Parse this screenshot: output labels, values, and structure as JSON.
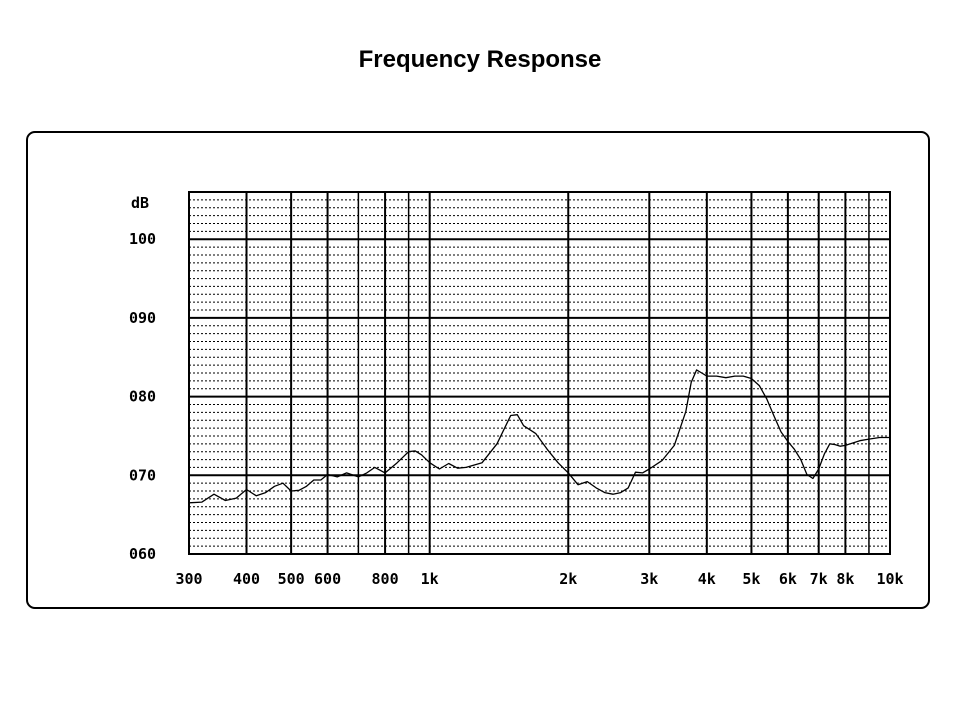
{
  "page": {
    "title": "Frequency Response"
  },
  "chart_data": {
    "type": "line",
    "title": "Frequency Response",
    "xlabel": "",
    "ylabel": "dB",
    "x_scale": "log",
    "xlim": [
      300,
      10000
    ],
    "ylim": [
      60,
      106
    ],
    "grid": true,
    "x_ticks": [
      {
        "value": 300,
        "label": "300"
      },
      {
        "value": 400,
        "label": "400"
      },
      {
        "value": 500,
        "label": "500"
      },
      {
        "value": 600,
        "label": "600"
      },
      {
        "value": 800,
        "label": "800"
      },
      {
        "value": 1000,
        "label": "1k"
      },
      {
        "value": 2000,
        "label": "2k"
      },
      {
        "value": 3000,
        "label": "3k"
      },
      {
        "value": 4000,
        "label": "4k"
      },
      {
        "value": 5000,
        "label": "5k"
      },
      {
        "value": 6000,
        "label": "6k"
      },
      {
        "value": 7000,
        "label": "7k"
      },
      {
        "value": 8000,
        "label": "8k"
      },
      {
        "value": 10000,
        "label": "10k"
      }
    ],
    "x_minor_gridlines": [
      700,
      900,
      9000
    ],
    "y_ticks": [
      {
        "value": 60,
        "label": "060"
      },
      {
        "value": 70,
        "label": "070"
      },
      {
        "value": 80,
        "label": "080"
      },
      {
        "value": 90,
        "label": "090"
      },
      {
        "value": 100,
        "label": "100"
      }
    ],
    "series": [
      {
        "color": "#000000",
        "x": [
          300,
          320,
          340,
          360,
          380,
          400,
          420,
          440,
          460,
          480,
          500,
          520,
          540,
          560,
          580,
          600,
          630,
          660,
          700,
          730,
          760,
          800,
          850,
          900,
          930,
          960,
          1000,
          1050,
          1100,
          1150,
          1200,
          1300,
          1400,
          1500,
          1550,
          1600,
          1700,
          1800,
          1900,
          2000,
          2100,
          2200,
          2300,
          2400,
          2500,
          2600,
          2700,
          2800,
          2900,
          3000,
          3200,
          3400,
          3600,
          3700,
          3800,
          3900,
          4000,
          4200,
          4400,
          4600,
          4800,
          5000,
          5200,
          5400,
          5600,
          5800,
          6000,
          6200,
          6400,
          6600,
          6800,
          7000,
          7200,
          7400,
          7600,
          7800,
          8000,
          8300,
          8600,
          9000,
          9500,
          10000
        ],
        "y": [
          66.5,
          66.6,
          67.6,
          66.8,
          67.1,
          68.2,
          67.4,
          67.8,
          68.6,
          69.0,
          68.0,
          68.1,
          68.6,
          69.4,
          69.4,
          70.1,
          69.8,
          70.3,
          69.8,
          70.3,
          71.0,
          70.3,
          71.6,
          73.0,
          73.1,
          72.6,
          71.6,
          70.8,
          71.5,
          70.9,
          71.0,
          71.6,
          74.0,
          77.6,
          77.7,
          76.3,
          75.3,
          73.3,
          71.6,
          70.3,
          68.8,
          69.2,
          68.4,
          67.8,
          67.6,
          67.8,
          68.4,
          70.4,
          70.3,
          70.8,
          71.9,
          73.8,
          78.1,
          81.8,
          83.4,
          83.0,
          82.6,
          82.6,
          82.4,
          82.6,
          82.6,
          82.3,
          81.4,
          79.7,
          77.5,
          75.5,
          74.3,
          73.3,
          72.0,
          70.1,
          69.6,
          70.8,
          72.7,
          74.0,
          73.9,
          73.7,
          73.8,
          74.1,
          74.4,
          74.6,
          74.8,
          74.8
        ]
      }
    ]
  }
}
